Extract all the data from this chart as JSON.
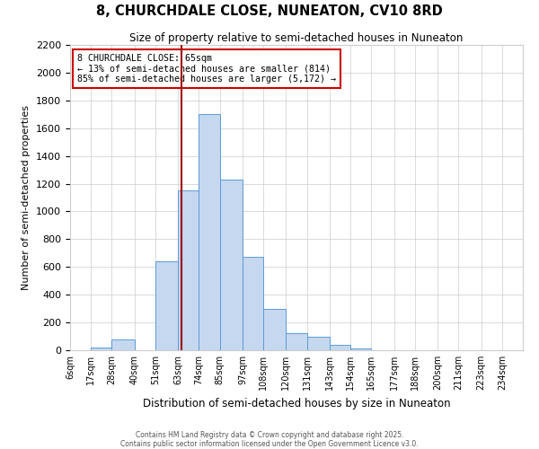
{
  "title": "8, CHURCHDALE CLOSE, NUNEATON, CV10 8RD",
  "subtitle": "Size of property relative to semi-detached houses in Nuneaton",
  "xlabel": "Distribution of semi-detached houses by size in Nuneaton",
  "ylabel": "Number of semi-detached properties",
  "bin_labels": [
    "6sqm",
    "17sqm",
    "28sqm",
    "40sqm",
    "51sqm",
    "63sqm",
    "74sqm",
    "85sqm",
    "97sqm",
    "108sqm",
    "120sqm",
    "131sqm",
    "143sqm",
    "154sqm",
    "165sqm",
    "177sqm",
    "188sqm",
    "200sqm",
    "211sqm",
    "223sqm",
    "234sqm"
  ],
  "bin_edges": [
    6,
    17,
    28,
    40,
    51,
    63,
    74,
    85,
    97,
    108,
    120,
    131,
    143,
    154,
    165,
    177,
    188,
    200,
    211,
    223,
    234,
    245
  ],
  "bar_heights": [
    0,
    20,
    80,
    0,
    640,
    1150,
    1700,
    1230,
    670,
    295,
    125,
    95,
    40,
    15,
    0,
    0,
    0,
    0,
    0,
    0,
    0
  ],
  "bar_color": "#c5d8f0",
  "bar_edge_color": "#5b9bd5",
  "property_value": 65,
  "property_label": "8 CHURCHDALE CLOSE: 65sqm",
  "smaller_pct": 13,
  "smaller_count": 814,
  "larger_pct": 85,
  "larger_count": "5,172",
  "vline_color": "#a00000",
  "annotation_box_edge": "#cc0000",
  "ylim": [
    0,
    2200
  ],
  "yticks": [
    0,
    200,
    400,
    600,
    800,
    1000,
    1200,
    1400,
    1600,
    1800,
    2000,
    2200
  ],
  "footer1": "Contains HM Land Registry data © Crown copyright and database right 2025.",
  "footer2": "Contains public sector information licensed under the Open Government Licence v3.0.",
  "bg_color": "#ffffff",
  "grid_color": "#cccccc"
}
